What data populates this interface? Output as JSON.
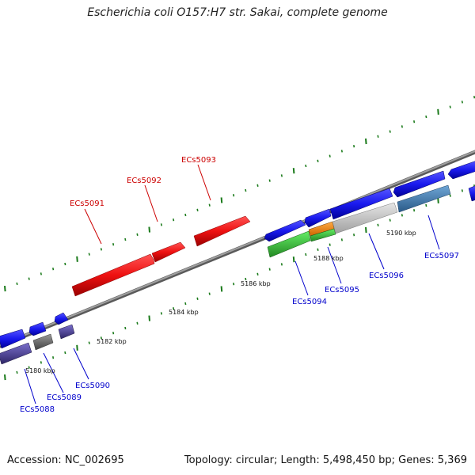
{
  "title": "Escherichia coli O157:H7 str. Sakai, complete genome",
  "footer": {
    "accession": "Accession: NC_002695",
    "summary": "Topology: circular; Length: 5,498,450 bp; Genes: 5,369"
  },
  "scale_labels": [
    "5180 kbp",
    "5182 kbp",
    "5184 kbp",
    "5186 kbp",
    "5188 kbp",
    "5190 kbp"
  ],
  "gene_labels": [
    {
      "text": "ECs5088",
      "color": "#0000cc"
    },
    {
      "text": "ECs5089",
      "color": "#0000cc"
    },
    {
      "text": "ECs5090",
      "color": "#0000cc"
    },
    {
      "text": "ECs5091",
      "color": "#cc0000"
    },
    {
      "text": "ECs5092",
      "color": "#cc0000"
    },
    {
      "text": "ECs5093",
      "color": "#cc0000"
    },
    {
      "text": "ECs5094",
      "color": "#0000cc"
    },
    {
      "text": "ECs5095",
      "color": "#0000cc"
    },
    {
      "text": "ECs5096",
      "color": "#0000cc"
    },
    {
      "text": "ECs5097",
      "color": "#0000cc"
    }
  ],
  "colors": {
    "backbone": "#8a8a8a",
    "tick": "#1a7a1a",
    "forward_gene": "#1a1aee",
    "rna_gene": "#ee1111",
    "feature_purple": "#4b3f99",
    "feature_gray": "#777777",
    "feature_green": "#33cc33",
    "feature_orange": "#ff8800",
    "feature_lightgray": "#cccccc",
    "feature_steelblue": "#4682b4"
  }
}
